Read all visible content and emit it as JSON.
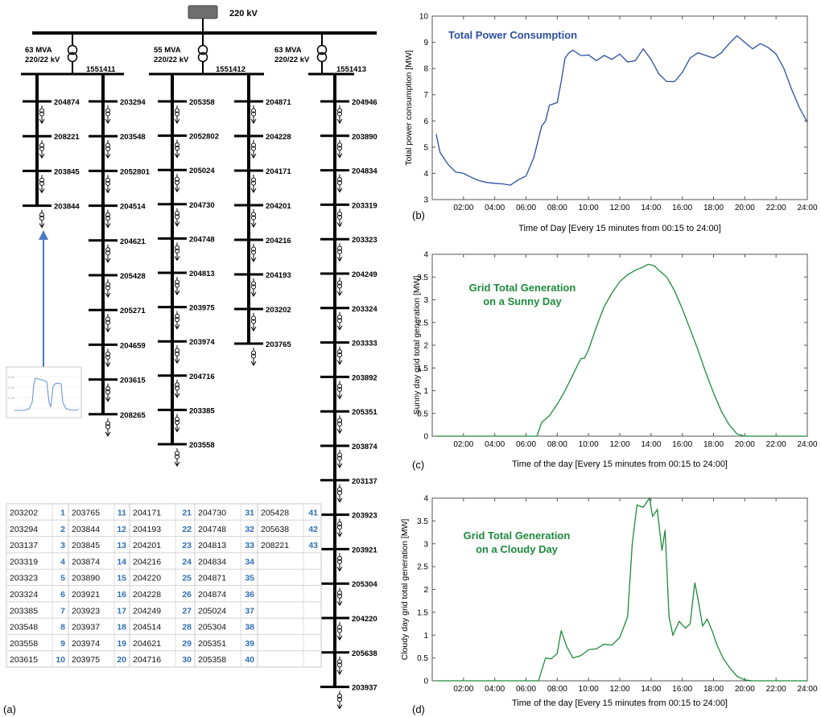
{
  "panel_labels": {
    "a": "(a)",
    "b": "(b)",
    "c": "(c)",
    "d": "(d)"
  },
  "diagram": {
    "source_voltage": "220 kV",
    "transformers": [
      {
        "rating": "63 MVA",
        "ratio": "220/22 kV",
        "bus": "1551411"
      },
      {
        "rating": "55 MVA",
        "ratio": "220/22 kV",
        "bus": "1551412"
      },
      {
        "rating": "63 MVA",
        "ratio": "220/22 kV",
        "bus": "1551413"
      }
    ],
    "feeders": [
      [
        "204874",
        "208221",
        "203845",
        "203844"
      ],
      [
        "203294",
        "203548",
        "2052801",
        "204514",
        "204621",
        "205428",
        "205271",
        "204659",
        "203615",
        "208265"
      ],
      [
        "205358",
        "2052802",
        "205024",
        "204730",
        "204748",
        "204813",
        "203975",
        "203974",
        "204716",
        "203385",
        "203558"
      ],
      [
        "204871",
        "204228",
        "204171",
        "204201",
        "204216",
        "204193",
        "203202",
        "203765"
      ],
      [
        "204946",
        "203890",
        "204834",
        "203319",
        "203323",
        "204249",
        "203324",
        "203333",
        "203892",
        "205351",
        "203874",
        "203137",
        "203923",
        "203921",
        "205304",
        "204220",
        "205638",
        "203937"
      ]
    ]
  },
  "bus_index_table": {
    "columns": [
      [
        [
          "203202",
          "1"
        ],
        [
          "203294",
          "2"
        ],
        [
          "203137",
          "3"
        ],
        [
          "203319",
          "4"
        ],
        [
          "203323",
          "5"
        ],
        [
          "203324",
          "6"
        ],
        [
          "203385",
          "7"
        ],
        [
          "203548",
          "8"
        ],
        [
          "203558",
          "9"
        ],
        [
          "203615",
          "10"
        ]
      ],
      [
        [
          "203765",
          "11"
        ],
        [
          "203844",
          "12"
        ],
        [
          "203845",
          "13"
        ],
        [
          "203874",
          "14"
        ],
        [
          "203890",
          "15"
        ],
        [
          "203921",
          "16"
        ],
        [
          "203923",
          "17"
        ],
        [
          "203937",
          "18"
        ],
        [
          "203974",
          "19"
        ],
        [
          "203975",
          "20"
        ]
      ],
      [
        [
          "204171",
          "21"
        ],
        [
          "204193",
          "22"
        ],
        [
          "204201",
          "23"
        ],
        [
          "204216",
          "24"
        ],
        [
          "204220",
          "25"
        ],
        [
          "204228",
          "26"
        ],
        [
          "204249",
          "27"
        ],
        [
          "204514",
          "28"
        ],
        [
          "204621",
          "29"
        ],
        [
          "204716",
          "30"
        ]
      ],
      [
        [
          "204730",
          "31"
        ],
        [
          "204748",
          "32"
        ],
        [
          "204813",
          "33"
        ],
        [
          "204834",
          "34"
        ],
        [
          "204871",
          "35"
        ],
        [
          "204874",
          "36"
        ],
        [
          "205024",
          "37"
        ],
        [
          "205304",
          "38"
        ],
        [
          "205351",
          "39"
        ],
        [
          "205358",
          "40"
        ]
      ],
      [
        [
          "205428",
          "41"
        ],
        [
          "205638",
          "42"
        ],
        [
          "208221",
          "43"
        ]
      ]
    ]
  },
  "chart_data": [
    {
      "type": "line",
      "title": "Total Power Consumption",
      "xlabel": "Time of Day [Every 15 minutes from 00:15 to 24:00]",
      "ylabel": "Total power consumption [MW]",
      "ylim": [
        3,
        10
      ],
      "yticks": [
        3,
        4,
        5,
        6,
        7,
        8,
        9,
        10
      ],
      "xticks": [
        "02:00",
        "04:00",
        "06:00",
        "08:00",
        "10:00",
        "12:00",
        "14:00",
        "16:00",
        "18:00",
        "20:00",
        "22:00",
        "24:00"
      ],
      "color": "#2b4ea0",
      "x": [
        0.25,
        0.5,
        1,
        1.5,
        2,
        2.5,
        3,
        3.5,
        4,
        4.5,
        5,
        5.5,
        6,
        6.5,
        7,
        7.25,
        7.5,
        7.75,
        8,
        8.25,
        8.5,
        8.75,
        9,
        9.25,
        9.5,
        9.75,
        10,
        10.5,
        11,
        11.5,
        12,
        12.5,
        13,
        13.5,
        14,
        14.5,
        15,
        15.5,
        16,
        16.5,
        17,
        17.5,
        18,
        18.5,
        19,
        19.5,
        20,
        20.5,
        21,
        21.5,
        22,
        22.5,
        23,
        23.5,
        24
      ],
      "y": [
        5.5,
        4.8,
        4.35,
        4.05,
        4.0,
        3.85,
        3.72,
        3.65,
        3.62,
        3.6,
        3.55,
        3.75,
        3.9,
        4.6,
        5.8,
        6.0,
        6.6,
        6.65,
        6.7,
        7.5,
        8.4,
        8.6,
        8.7,
        8.6,
        8.5,
        8.5,
        8.52,
        8.3,
        8.5,
        8.35,
        8.55,
        8.25,
        8.3,
        8.75,
        8.35,
        7.8,
        7.5,
        7.5,
        7.85,
        8.4,
        8.6,
        8.5,
        8.4,
        8.6,
        8.95,
        9.25,
        9.0,
        8.75,
        8.95,
        8.8,
        8.55,
        8.0,
        7.2,
        6.5,
        5.95
      ]
    },
    {
      "type": "line",
      "title": "Grid Total Generation on a Sunny Day",
      "xlabel": "Time of the day [Every 15 minutes from 00:15 to 24:00]",
      "ylabel": "Sunny day grid total generation [MW]",
      "ylim": [
        0,
        4
      ],
      "yticks": [
        0,
        0.5,
        1,
        1.5,
        2,
        2.5,
        3,
        3.5,
        4
      ],
      "xticks": [
        "02:00",
        "04:00",
        "06:00",
        "08:00",
        "10:00",
        "12:00",
        "14:00",
        "16:00",
        "18:00",
        "20:00",
        "22:00",
        "24:00"
      ],
      "color": "#1e8a3c",
      "x": [
        0.25,
        2,
        4,
        6,
        6.7,
        7,
        7.5,
        8,
        8.5,
        9,
        9.5,
        9.75,
        10,
        10.5,
        11,
        11.5,
        12,
        12.5,
        13,
        13.5,
        13.8,
        14.2,
        14.5,
        15,
        15.5,
        16,
        16.5,
        17,
        17.5,
        18,
        18.5,
        19,
        19.5,
        20,
        20.5,
        22,
        24
      ],
      "y": [
        0,
        0,
        0,
        0,
        0,
        0.3,
        0.45,
        0.7,
        1.0,
        1.35,
        1.7,
        1.72,
        1.9,
        2.4,
        2.85,
        3.15,
        3.4,
        3.55,
        3.65,
        3.72,
        3.78,
        3.75,
        3.65,
        3.5,
        3.2,
        2.8,
        2.35,
        1.9,
        1.4,
        0.95,
        0.55,
        0.25,
        0.05,
        0,
        0,
        0,
        0
      ]
    },
    {
      "type": "line",
      "title": "Grid Total Generation on a Cloudy Day",
      "xlabel": "Time of the day [Every 15 minutes from 00:15 to 24:00]",
      "ylabel": "Cloudy day grid total generation [MW]",
      "ylim": [
        0,
        4
      ],
      "yticks": [
        0,
        0.5,
        1,
        1.5,
        2,
        2.5,
        3,
        3.5,
        4
      ],
      "xticks": [
        "02:00",
        "04:00",
        "06:00",
        "08:00",
        "10:00",
        "12:00",
        "14:00",
        "16:00",
        "18:00",
        "20:00",
        "22:00",
        "24:00"
      ],
      "color": "#1e8a3c",
      "x": [
        0.25,
        2,
        4,
        6,
        6.8,
        7.25,
        7.6,
        8,
        8.25,
        8.6,
        9,
        9.5,
        10,
        10.5,
        11,
        11.5,
        12,
        12.5,
        12.8,
        13.1,
        13.5,
        13.9,
        14.1,
        14.4,
        14.7,
        14.9,
        15.15,
        15.4,
        15.8,
        16.2,
        16.5,
        16.8,
        17.0,
        17.3,
        17.6,
        17.9,
        18.2,
        18.6,
        19,
        19.5,
        20,
        20.5,
        22,
        24
      ],
      "y": [
        0,
        0,
        0,
        0,
        0,
        0.5,
        0.48,
        0.6,
        1.1,
        0.75,
        0.5,
        0.55,
        0.68,
        0.7,
        0.8,
        0.78,
        0.95,
        1.4,
        3.0,
        3.85,
        3.8,
        4.0,
        3.6,
        3.75,
        2.85,
        3.3,
        1.4,
        1.0,
        1.3,
        1.15,
        1.25,
        2.15,
        1.8,
        1.2,
        1.35,
        1.1,
        0.8,
        0.5,
        0.3,
        0.1,
        0.02,
        0,
        0,
        0
      ]
    }
  ]
}
